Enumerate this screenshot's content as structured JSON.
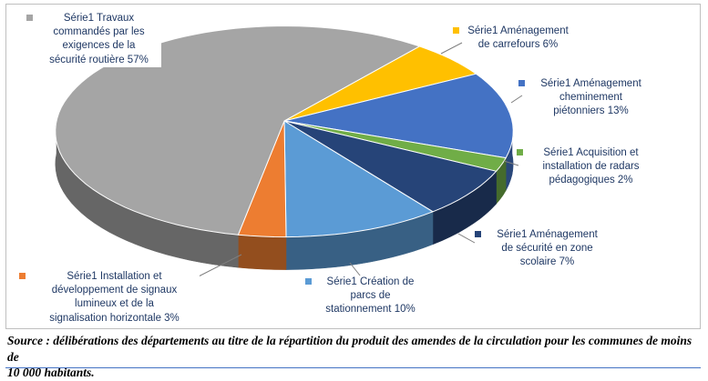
{
  "chart_data": {
    "type": "pie",
    "style": "pie-3d",
    "series_name": "Série1",
    "unit": "%",
    "title": "",
    "legend_position": "data-labels-around-pie",
    "start_angle_deg": 40,
    "direction": "clockwise",
    "label_text_color": "#1F3864",
    "slices": [
      {
        "key": "carrefours",
        "label": "Aménagement de carrefours",
        "value": 6,
        "color": "#FFC000",
        "display": "Série1 Aménagement\nde carrefours 6%"
      },
      {
        "key": "cheminement",
        "label": "Aménagement cheminement piétonniers",
        "value": 13,
        "color": "#4472C4",
        "display": "Série1 Aménagement\ncheminement\npiétonniers 13%"
      },
      {
        "key": "radars",
        "label": "Acquisition et installation de radars pédagogiques",
        "value": 2,
        "color": "#70AD47",
        "display": "Série1 Acquisition et\ninstallation de radars\npédagogiques 2%"
      },
      {
        "key": "zone_scolaire",
        "label": "Aménagement de sécurité en zone scolaire",
        "value": 7,
        "color": "#264478",
        "display": "Série1 Aménagement\nde sécurité en zone\nscolaire 7%"
      },
      {
        "key": "parcs",
        "label": "Création de parcs de stationnement",
        "value": 10,
        "color": "#5B9BD5",
        "display": "Série1 Création de\nparcs de\nstationnement 10%"
      },
      {
        "key": "signaux",
        "label": "Installation et développement de signaux lumineux et de la signalisation horizontale",
        "value": 3,
        "color": "#ED7D31",
        "display": "Série1 Installation et\ndéveloppement de signaux\nlumineux et de la\nsignalisation horizontale 3%"
      },
      {
        "key": "travaux",
        "label": "Travaux commandés par les exigences de la sécurité routière",
        "value": 57,
        "color": "#A5A5A5",
        "display": "Série1 Travaux\ncommandés par les\nexigences de la\nsécurité routière 57%"
      }
    ]
  },
  "source_note": "Source : délibérations des départements au titre de la répartition du produit des amendes de la circulation pour les communes de moins de\n10 000 habitants."
}
